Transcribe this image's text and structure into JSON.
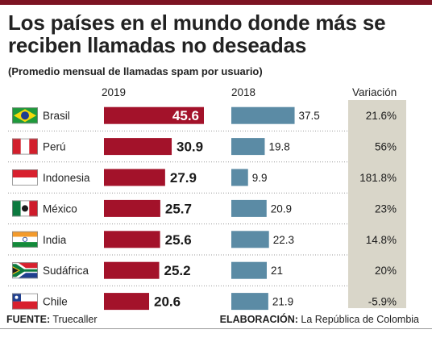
{
  "title": "Los países en el mundo donde más se reciben llamadas no deseadas",
  "subtitle": "(Promedio mensual de llamadas spam por usuario)",
  "headers": {
    "y2019": "2019",
    "y2018": "2018",
    "variation": "Variación"
  },
  "source_label": "FUENTE:",
  "source": "Truecaller",
  "credit_label": "ELABORACIÓN:",
  "credit": "La República de Colombia",
  "colors": {
    "bar2019": "#a3122a",
    "bar2018": "#5b8ba5",
    "variation_bg": "#d9d6c9",
    "brand_rule": "#7d1423"
  },
  "chart_data": {
    "type": "bar",
    "title": "Los países en el mundo donde más se reciben llamadas no deseadas",
    "subtitle": "(Promedio mensual de llamadas spam por usuario)",
    "categories": [
      "Brasil",
      "Perú",
      "Indonesia",
      "México",
      "India",
      "Sudáfrica",
      "Chile"
    ],
    "flags": [
      "brazil-flag-icon",
      "peru-flag-icon",
      "indonesia-flag-icon",
      "mexico-flag-icon",
      "india-flag-icon",
      "south-africa-flag-icon",
      "chile-flag-icon"
    ],
    "series": [
      {
        "name": "2019",
        "values": [
          45.6,
          30.9,
          27.9,
          25.7,
          25.6,
          25.2,
          20.6
        ],
        "labels": [
          "45.6",
          "30.9",
          "27.9",
          "25.7",
          "25.6",
          "25.2",
          "20.6"
        ]
      },
      {
        "name": "2018",
        "values": [
          37.5,
          19.8,
          9.9,
          20.9,
          22.3,
          21,
          21.9
        ],
        "labels": [
          "37.5",
          "19.8",
          "9.9",
          "20.9",
          "22.3",
          "21",
          "21.9"
        ]
      }
    ],
    "variation": [
      "21.6%",
      "56%",
      "181.8%",
      "23%",
      "14.8%",
      "20%",
      "-5.9%"
    ],
    "xlim": [
      0,
      45.6
    ],
    "grid": false,
    "legend": "none"
  }
}
